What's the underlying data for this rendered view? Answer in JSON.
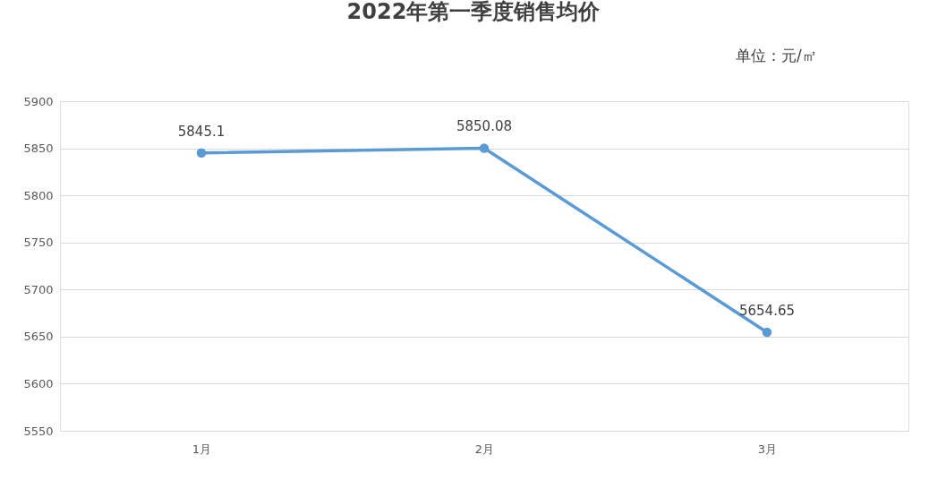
{
  "chart_data": {
    "type": "line",
    "title": "2022年第一季度销售均价",
    "annotations": [
      "单位：元/㎡"
    ],
    "categories": [
      "1月",
      "2月",
      "3月"
    ],
    "series": [
      {
        "color": "#5b9bd5",
        "values": [
          5845.1,
          5850.08,
          5654.65
        ]
      }
    ],
    "ylim": [
      5550,
      5900
    ],
    "yticks": [
      5550,
      5600,
      5650,
      5700,
      5750,
      5800,
      5850,
      5900
    ],
    "grid": "y",
    "data_labels": true,
    "marker": "circle",
    "line_style": "solid"
  }
}
